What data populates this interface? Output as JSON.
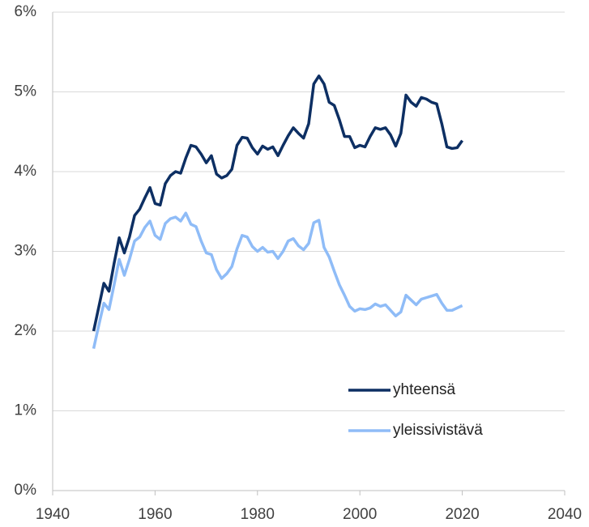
{
  "chart_data": {
    "type": "line",
    "x": [
      1948,
      1949,
      1950,
      1951,
      1952,
      1953,
      1954,
      1955,
      1956,
      1957,
      1958,
      1959,
      1960,
      1961,
      1962,
      1963,
      1964,
      1965,
      1966,
      1967,
      1968,
      1969,
      1970,
      1971,
      1972,
      1973,
      1974,
      1975,
      1976,
      1977,
      1978,
      1979,
      1980,
      1981,
      1982,
      1983,
      1984,
      1985,
      1986,
      1987,
      1988,
      1989,
      1990,
      1991,
      1992,
      1993,
      1994,
      1995,
      1996,
      1997,
      1998,
      1999,
      2000,
      2001,
      2002,
      2003,
      2004,
      2005,
      2006,
      2007,
      2008,
      2009,
      2010,
      2011,
      2012,
      2013,
      2014,
      2015,
      2016,
      2017,
      2018,
      2019,
      2020
    ],
    "series": [
      {
        "name": "yhteensä",
        "color": "#0d2f63",
        "values": [
          2.0,
          2.3,
          2.6,
          2.5,
          2.85,
          3.17,
          2.98,
          3.18,
          3.45,
          3.53,
          3.67,
          3.8,
          3.6,
          3.58,
          3.85,
          3.95,
          4.0,
          3.98,
          4.17,
          4.33,
          4.31,
          4.22,
          4.11,
          4.2,
          3.97,
          3.92,
          3.95,
          4.03,
          4.33,
          4.43,
          4.42,
          4.3,
          4.22,
          4.32,
          4.28,
          4.31,
          4.2,
          4.33,
          4.45,
          4.55,
          4.48,
          4.42,
          4.6,
          5.1,
          5.2,
          5.1,
          4.87,
          4.83,
          4.65,
          4.44,
          4.44,
          4.3,
          4.33,
          4.31,
          4.44,
          4.55,
          4.53,
          4.55,
          4.46,
          4.32,
          4.48,
          4.96,
          4.87,
          4.82,
          4.93,
          4.91,
          4.87,
          4.85,
          4.6,
          4.31,
          4.29,
          4.3,
          4.39
        ]
      },
      {
        "name": "yleissivistävä",
        "color": "#8fbcf7",
        "values": [
          1.78,
          2.07,
          2.35,
          2.27,
          2.58,
          2.9,
          2.7,
          2.9,
          3.13,
          3.18,
          3.3,
          3.38,
          3.2,
          3.15,
          3.35,
          3.41,
          3.43,
          3.38,
          3.48,
          3.34,
          3.31,
          3.13,
          2.98,
          2.96,
          2.77,
          2.66,
          2.72,
          2.81,
          3.03,
          3.2,
          3.18,
          3.06,
          3.0,
          3.05,
          2.99,
          3.0,
          2.91,
          3.0,
          3.13,
          3.16,
          3.07,
          3.02,
          3.1,
          3.36,
          3.39,
          3.05,
          2.93,
          2.75,
          2.58,
          2.45,
          2.31,
          2.25,
          2.28,
          2.27,
          2.29,
          2.34,
          2.31,
          2.33,
          2.26,
          2.19,
          2.24,
          2.45,
          2.39,
          2.33,
          2.4,
          2.42,
          2.44,
          2.46,
          2.35,
          2.26,
          2.26,
          2.29,
          2.32
        ]
      }
    ],
    "xlim": [
      1940,
      2040
    ],
    "xticks": [
      1940,
      1960,
      1980,
      2000,
      2020,
      2040
    ],
    "ylim": [
      0,
      6
    ],
    "yticks": [
      {
        "value": 0,
        "label": "0%"
      },
      {
        "value": 1,
        "label": "1%"
      },
      {
        "value": 2,
        "label": "2%"
      },
      {
        "value": 3,
        "label": "3%"
      },
      {
        "value": 4,
        "label": "4%"
      },
      {
        "value": 5,
        "label": "5%"
      },
      {
        "value": 6,
        "label": "6%"
      }
    ],
    "grid": true,
    "legend": "lower right"
  }
}
